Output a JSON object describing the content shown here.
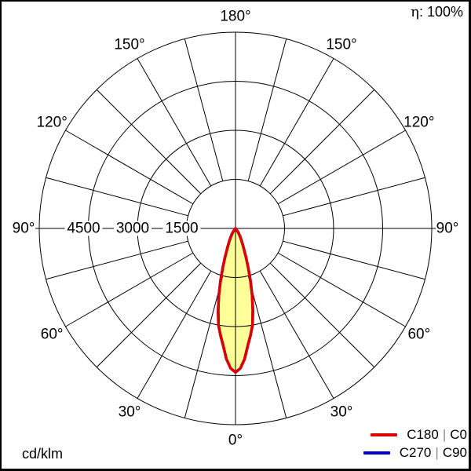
{
  "diagram": {
    "eta_symbol": "η",
    "eta_value": ": 100%",
    "unit": "cd/klm",
    "angle_labels": [
      "0°",
      "30°",
      "60°",
      "90°",
      "120°",
      "150°",
      "180°"
    ],
    "ring_labels": [
      "4500",
      "3000",
      "1500"
    ],
    "legend": [
      {
        "label_a": "C180",
        "separator": "|",
        "label_b": "C0",
        "color": "#dd0000"
      },
      {
        "label_a": "C270",
        "separator": "|",
        "label_b": "C90",
        "color": "#0000cc"
      }
    ]
  },
  "chart_data": {
    "type": "polar_intensity_distribution",
    "title": "",
    "unit": "cd/klm",
    "efficiency_percent": 100,
    "angle_ticks_deg": [
      0,
      30,
      60,
      90,
      120,
      150,
      180
    ],
    "angle_grid_step_deg": 15,
    "radial_ticks": [
      1500,
      3000,
      4500
    ],
    "radial_max": 6000,
    "grid_color": "#000000",
    "beam_fill_color": "#ffff99",
    "series": [
      {
        "name": "C180 | C0",
        "color": "#dd0000",
        "gamma_deg": [
          0,
          2,
          4,
          6,
          8,
          10,
          12,
          14,
          16,
          18,
          20,
          22,
          25,
          28,
          31,
          34,
          37,
          40
        ],
        "values_cd_per_klm": [
          4400,
          4280,
          4000,
          3600,
          3300,
          3000,
          2550,
          2100,
          1650,
          1250,
          950,
          700,
          480,
          330,
          230,
          160,
          80,
          0
        ],
        "peak_cd_per_klm": 4400,
        "peak_gamma_deg": 0
      },
      {
        "name": "C270 | C90",
        "color": "#0000cc",
        "gamma_deg": [
          0,
          2,
          4,
          6,
          8,
          10,
          12,
          14,
          16,
          18,
          20,
          22,
          25,
          28,
          31,
          34,
          37,
          40
        ],
        "values_cd_per_klm": [
          4400,
          4280,
          4000,
          3600,
          3300,
          3000,
          2550,
          2100,
          1650,
          1250,
          950,
          700,
          480,
          330,
          230,
          160,
          80,
          0
        ]
      }
    ]
  }
}
